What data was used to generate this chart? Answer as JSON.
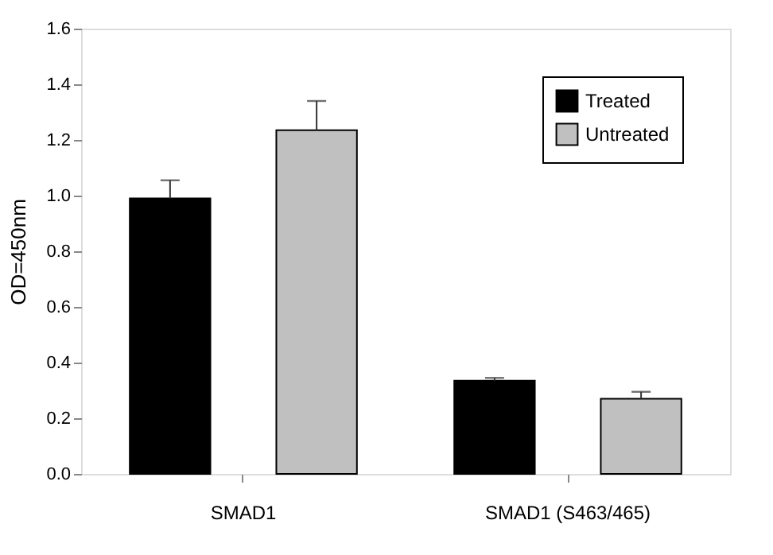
{
  "chart_data": {
    "type": "bar",
    "ylabel": "OD=450nm",
    "categories": [
      "SMAD1",
      "SMAD1 (S463/465)"
    ],
    "series": [
      {
        "name": "Treated",
        "color": "#000000",
        "values": [
          0.99,
          0.335
        ],
        "errors": [
          [
            0.99,
            1.055
          ],
          [
            0.335,
            0.345
          ]
        ]
      },
      {
        "name": "Untreated",
        "color": "#c0c0c0",
        "values": [
          1.235,
          0.27
        ],
        "errors": [
          [
            1.235,
            1.34
          ],
          [
            0.27,
            0.295
          ]
        ]
      }
    ],
    "ylim": [
      0,
      1.6
    ],
    "yticks": [
      {
        "value": 0,
        "label": "0.0"
      },
      {
        "value": 0.2,
        "label": "0.2"
      },
      {
        "value": 0.4,
        "label": "0.4"
      },
      {
        "value": 0.6,
        "label": "0.6"
      },
      {
        "value": 0.8,
        "label": "0.8"
      },
      {
        "value": 1.0,
        "label": "1.0"
      },
      {
        "value": 1.2,
        "label": "1.2"
      },
      {
        "value": 1.4,
        "label": "1.4"
      },
      {
        "value": 1.6,
        "label": "1.6"
      }
    ],
    "grid": false,
    "legend": "top right"
  }
}
